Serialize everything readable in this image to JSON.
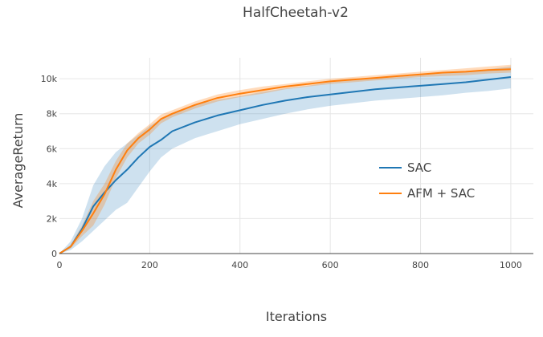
{
  "chart_data": {
    "type": "line",
    "title": "HalfCheetah-v2",
    "xlabel": "Iterations",
    "ylabel": "AverageReturn",
    "xlim": [
      0,
      1050
    ],
    "ylim": [
      0,
      11200
    ],
    "x_ticks": [
      0,
      200,
      400,
      600,
      800,
      1000
    ],
    "x_tick_labels": [
      "0",
      "200",
      "400",
      "600",
      "800",
      "1000"
    ],
    "y_ticks": [
      0,
      2000,
      4000,
      6000,
      8000,
      10000
    ],
    "y_tick_labels": [
      "0",
      "2k",
      "4k",
      "6k",
      "8k",
      "10k"
    ],
    "grid": true,
    "legend_position": "center-right",
    "series": [
      {
        "name": "SAC",
        "color": "#1f77b4",
        "x": [
          0,
          25,
          50,
          75,
          100,
          125,
          150,
          175,
          200,
          225,
          250,
          300,
          350,
          400,
          450,
          500,
          550,
          600,
          650,
          700,
          750,
          800,
          850,
          900,
          950,
          1000
        ],
        "y": [
          0,
          400,
          1400,
          2700,
          3500,
          4200,
          4800,
          5500,
          6100,
          6500,
          7000,
          7500,
          7900,
          8200,
          8500,
          8750,
          8950,
          9100,
          9250,
          9400,
          9500,
          9600,
          9700,
          9800,
          9950,
          10100
        ],
        "lower": [
          0,
          200,
          700,
          1300,
          1900,
          2500,
          2900,
          3800,
          4700,
          5500,
          6000,
          6600,
          7000,
          7400,
          7700,
          8000,
          8250,
          8450,
          8600,
          8750,
          8850,
          8950,
          9050,
          9200,
          9300,
          9450
        ],
        "upper": [
          0,
          700,
          2000,
          3900,
          5000,
          5800,
          6300,
          6800,
          7300,
          7700,
          8000,
          8500,
          8800,
          9000,
          9250,
          9450,
          9600,
          9800,
          9900,
          10000,
          10100,
          10200,
          10300,
          10400,
          10550,
          10700
        ]
      },
      {
        "name": "AFM + SAC",
        "color": "#ff7f0e",
        "x": [
          0,
          25,
          50,
          75,
          100,
          125,
          150,
          175,
          200,
          225,
          250,
          300,
          350,
          400,
          450,
          500,
          550,
          600,
          650,
          700,
          750,
          800,
          850,
          900,
          950,
          1000
        ],
        "y": [
          0,
          400,
          1300,
          2300,
          3400,
          4800,
          5900,
          6600,
          7100,
          7700,
          8000,
          8500,
          8900,
          9150,
          9350,
          9550,
          9700,
          9850,
          9950,
          10050,
          10150,
          10250,
          10350,
          10400,
          10500,
          10550
        ],
        "lower": [
          0,
          300,
          1000,
          1600,
          2800,
          4300,
          5500,
          6300,
          6800,
          7450,
          7800,
          8300,
          8700,
          8950,
          9150,
          9400,
          9550,
          9700,
          9800,
          9900,
          10000,
          10100,
          10150,
          10200,
          10300,
          10350
        ],
        "upper": [
          0,
          500,
          1600,
          3000,
          4000,
          5300,
          6300,
          6900,
          7400,
          7950,
          8200,
          8700,
          9100,
          9350,
          9550,
          9700,
          9850,
          10000,
          10100,
          10200,
          10300,
          10400,
          10500,
          10600,
          10700,
          10800
        ]
      }
    ]
  }
}
